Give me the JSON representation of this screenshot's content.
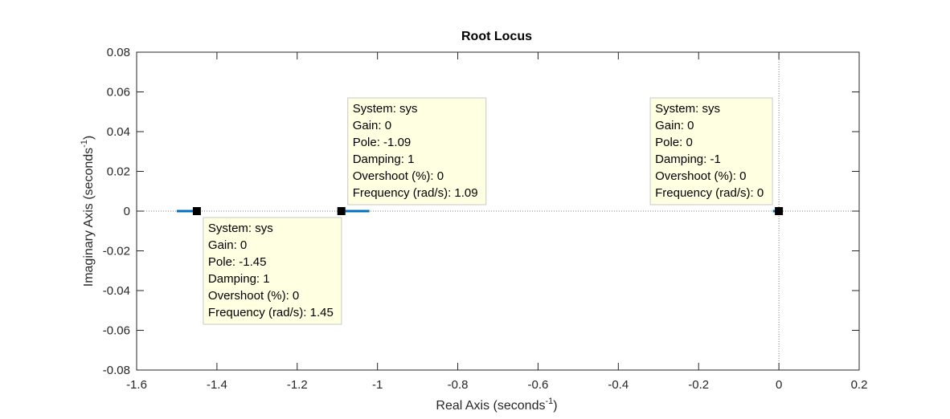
{
  "chart_data": {
    "type": "scatter",
    "title": "Root Locus",
    "xlabel": "Real Axis (seconds",
    "ylabel": "Imaginary Axis (seconds",
    "axis_unit_exponent": "-1",
    "axis_unit_close": ")",
    "xlim": [
      -1.6,
      0.2
    ],
    "ylim": [
      -0.08,
      0.08
    ],
    "xticks": [
      -1.6,
      -1.4,
      -1.2,
      -1,
      -0.8,
      -0.6,
      -0.4,
      -0.2,
      0,
      0.2
    ],
    "yticks": [
      -0.08,
      -0.06,
      -0.04,
      -0.02,
      0,
      0.02,
      0.04,
      0.06,
      0.08
    ],
    "xtick_labels": [
      "-1.6",
      "-1.4",
      "-1.2",
      "-1",
      "-0.8",
      "-0.6",
      "-0.4",
      "-0.2",
      "0",
      "0.2"
    ],
    "ytick_labels": [
      "-0.08",
      "-0.06",
      "-0.04",
      "-0.02",
      "0",
      "0.02",
      "0.04",
      "0.06",
      "0.08"
    ],
    "grid": false,
    "reference_lines": {
      "horizontal_y": 0,
      "vertical_x": 0,
      "style": "dotted"
    },
    "locus_color": "#0072bd",
    "locus_segments": [
      {
        "x": [
          -1.5,
          -1.45
        ]
      },
      {
        "x": [
          -1.08,
          -1.02
        ]
      },
      {
        "x": [
          -0.015,
          -0.005
        ]
      }
    ],
    "poles": [
      {
        "x": -1.45,
        "y": 0
      },
      {
        "x": -1.09,
        "y": 0
      },
      {
        "x": 0,
        "y": 0
      }
    ],
    "datatips": [
      {
        "pole_x": -1.45,
        "placement": "below-right",
        "lines": [
          "System: sys",
          "Gain: 0",
          "Pole: -1.45",
          "Damping: 1",
          "Overshoot (%): 0",
          "Frequency (rad/s): 1.45"
        ]
      },
      {
        "pole_x": -1.09,
        "placement": "above-right",
        "lines": [
          "System: sys",
          "Gain: 0",
          "Pole: -1.09",
          "Damping: 1",
          "Overshoot (%): 0",
          "Frequency (rad/s): 1.09"
        ]
      },
      {
        "pole_x": 0,
        "placement": "above-left",
        "lines": [
          "System: sys",
          "Gain: 0",
          "Pole: 0",
          "Damping: -1",
          "Overshoot (%): 0",
          "Frequency (rad/s): 0"
        ]
      }
    ]
  }
}
